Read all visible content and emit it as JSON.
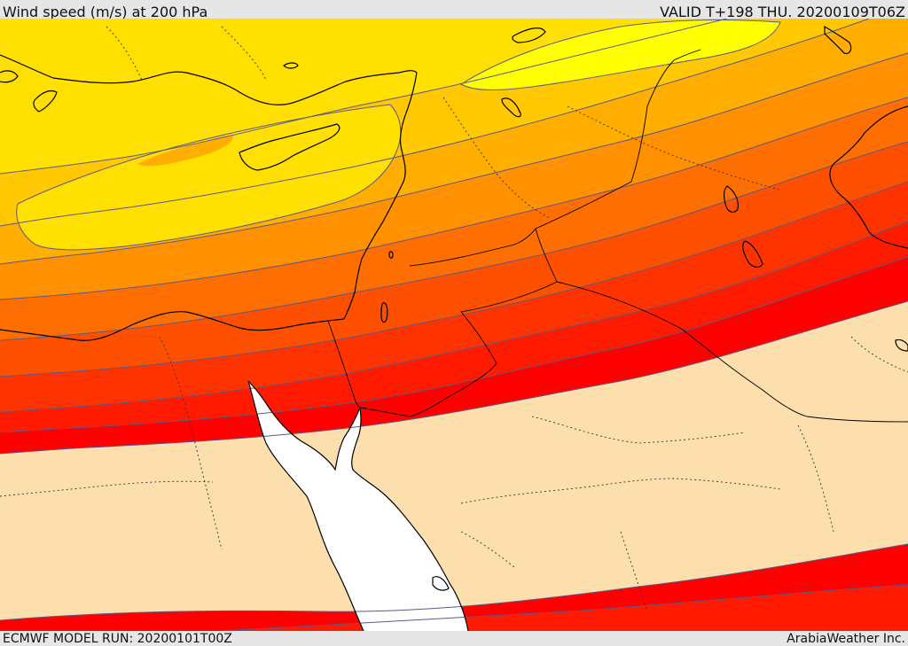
{
  "header": {
    "title": "Wind speed (m/s) at 200 hPa",
    "valid": "VALID T+198 THU. 20200109T06Z"
  },
  "footer": {
    "model_run": "ECMWF MODEL RUN: 20200101T00Z",
    "credit": "ArabiaWeather Inc."
  },
  "map": {
    "region": "Eastern Mediterranean, Levant, Sinai and northern Red Sea",
    "field": "Wind speed at 200 hPa",
    "band_colors": [
      "#fddfae",
      "#ff0000",
      "#ff1a00",
      "#ff3300",
      "#ff5000",
      "#ff6e00",
      "#ff9000",
      "#ffae00",
      "#ffc800",
      "#ffe000",
      "#ffff00"
    ],
    "sea_color": "#ffffff",
    "contour_color": "#5a5a8a",
    "coastline_color": "#000000",
    "border_style": "dotted"
  }
}
